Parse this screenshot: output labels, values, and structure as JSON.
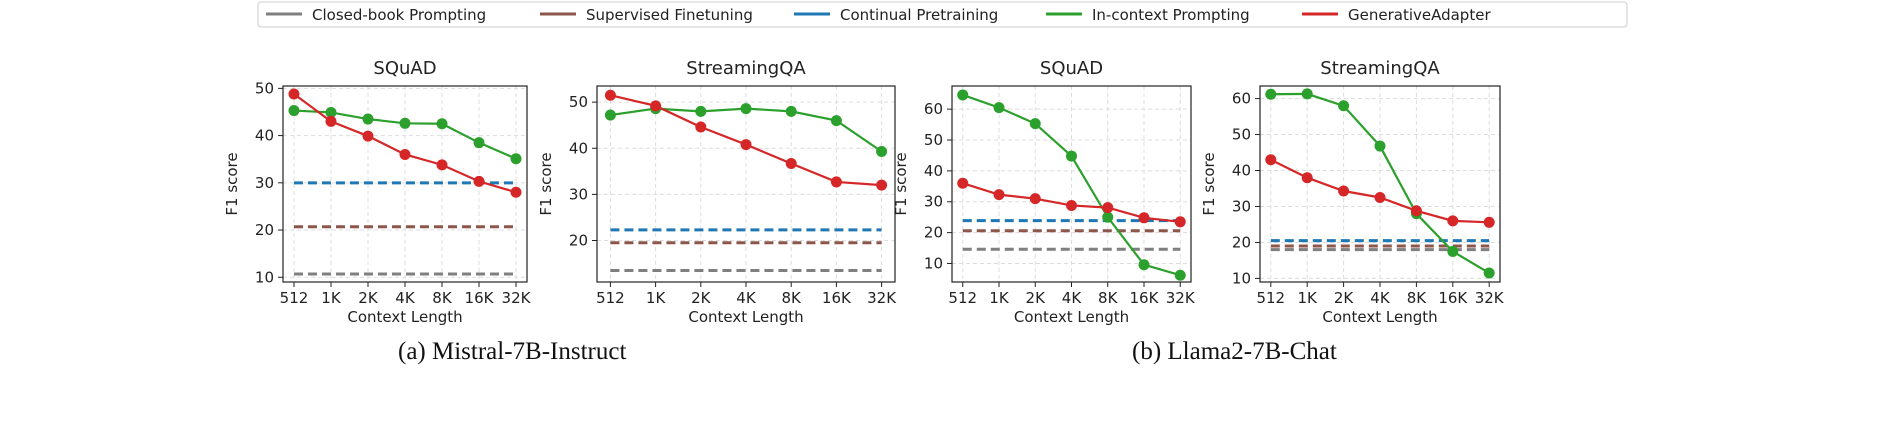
{
  "legend": [
    {
      "name": "Closed-book Prompting",
      "color": "#7f7f7f"
    },
    {
      "name": "Supervised Finetuning",
      "color": "#8c564b"
    },
    {
      "name": "Continual Pretraining",
      "color": "#1f77b4"
    },
    {
      "name": "In-context Prompting",
      "color": "#2ca02c"
    },
    {
      "name": "GenerativeAdapter",
      "color": "#d62728"
    }
  ],
  "captions": {
    "a": "(a) Mistral-7B-Instruct",
    "b": "(b) Llama2-7B-Chat"
  },
  "chart_data": [
    {
      "type": "line",
      "title": "SQuAD",
      "xlabel": "Context Length",
      "ylabel": "F1 score",
      "categories": [
        "512",
        "1K",
        "2K",
        "4K",
        "8K",
        "16K",
        "32K"
      ],
      "ylim": [
        9,
        50.5
      ],
      "yticks": [
        10,
        20,
        30,
        40,
        50
      ],
      "grid": true,
      "series": [
        {
          "name": "Closed-book Prompting",
          "values": [
            10.7,
            10.7,
            10.7,
            10.7,
            10.7,
            10.7,
            10.7
          ],
          "dashed": true
        },
        {
          "name": "Supervised Finetuning",
          "values": [
            20.7,
            20.7,
            20.7,
            20.7,
            20.7,
            20.7,
            20.7
          ],
          "dashed": true
        },
        {
          "name": "Continual Pretraining",
          "values": [
            30,
            30,
            30,
            30,
            30,
            30,
            30
          ],
          "dashed": true
        },
        {
          "name": "In-context Prompting",
          "values": [
            45.3,
            44.9,
            43.5,
            42.6,
            42.5,
            38.5,
            35.1
          ]
        },
        {
          "name": "GenerativeAdapter",
          "values": [
            48.8,
            43,
            39.9,
            36,
            33.8,
            30.3,
            28
          ]
        }
      ]
    },
    {
      "type": "line",
      "title": "StreamingQA",
      "xlabel": "Context Length",
      "ylabel": "F1 score",
      "categories": [
        "512",
        "1K",
        "2K",
        "4K",
        "8K",
        "16K",
        "32K"
      ],
      "ylim": [
        11,
        53.5
      ],
      "yticks": [
        20,
        30,
        40,
        50
      ],
      "grid": true,
      "series": [
        {
          "name": "Closed-book Prompting",
          "values": [
            13.5,
            13.5,
            13.5,
            13.5,
            13.5,
            13.5,
            13.5
          ],
          "dashed": true
        },
        {
          "name": "Supervised Finetuning",
          "values": [
            19.5,
            19.5,
            19.5,
            19.5,
            19.5,
            19.5,
            19.5
          ],
          "dashed": true
        },
        {
          "name": "Continual Pretraining",
          "values": [
            22.3,
            22.3,
            22.3,
            22.3,
            22.3,
            22.3,
            22.3
          ],
          "dashed": true
        },
        {
          "name": "In-context Prompting",
          "values": [
            47.2,
            48.6,
            48,
            48.6,
            48,
            46,
            39.3
          ]
        },
        {
          "name": "GenerativeAdapter",
          "values": [
            51.5,
            49.2,
            44.6,
            40.8,
            36.7,
            32.7,
            32
          ]
        }
      ]
    },
    {
      "type": "line",
      "title": "SQuAD",
      "xlabel": "Context Length",
      "ylabel": "F1 score",
      "categories": [
        "512",
        "1K",
        "2K",
        "4K",
        "8K",
        "16K",
        "32K"
      ],
      "ylim": [
        4,
        67.5
      ],
      "yticks": [
        10,
        20,
        30,
        40,
        50,
        60
      ],
      "grid": true,
      "series": [
        {
          "name": "Closed-book Prompting",
          "values": [
            14.6,
            14.6,
            14.6,
            14.6,
            14.6,
            14.6,
            14.6
          ],
          "dashed": true
        },
        {
          "name": "Supervised Finetuning",
          "values": [
            20.6,
            20.6,
            20.6,
            20.6,
            20.6,
            20.6,
            20.6
          ],
          "dashed": true
        },
        {
          "name": "Continual Pretraining",
          "values": [
            23.9,
            23.9,
            23.9,
            23.9,
            23.9,
            23.9,
            23.9
          ],
          "dashed": true
        },
        {
          "name": "In-context Prompting",
          "values": [
            64.6,
            60.5,
            55.3,
            44.8,
            25,
            9.6,
            6.2
          ]
        },
        {
          "name": "GenerativeAdapter",
          "values": [
            36,
            32.3,
            31,
            28.8,
            28.1,
            24.8,
            23.5
          ]
        }
      ]
    },
    {
      "type": "line",
      "title": "StreamingQA",
      "xlabel": "Context Length",
      "ylabel": "F1 score",
      "categories": [
        "512",
        "1K",
        "2K",
        "4K",
        "8K",
        "16K",
        "32K"
      ],
      "ylim": [
        9,
        63.5
      ],
      "yticks": [
        10,
        20,
        30,
        40,
        50,
        60
      ],
      "grid": true,
      "series": [
        {
          "name": "Closed-book Prompting",
          "values": [
            18,
            18,
            18,
            18,
            18,
            18,
            18
          ],
          "dashed": true
        },
        {
          "name": "Supervised Finetuning",
          "values": [
            19,
            19,
            19,
            19,
            19,
            19,
            19
          ],
          "dashed": true
        },
        {
          "name": "Continual Pretraining",
          "values": [
            20.5,
            20.5,
            20.5,
            20.5,
            20.5,
            20.5,
            20.5
          ],
          "dashed": true
        },
        {
          "name": "In-context Prompting",
          "values": [
            61.2,
            61.3,
            58,
            46.8,
            28,
            17.5,
            11.5
          ]
        },
        {
          "name": "GenerativeAdapter",
          "values": [
            43,
            38,
            34.3,
            32.5,
            28.8,
            26,
            25.6
          ]
        }
      ]
    }
  ]
}
